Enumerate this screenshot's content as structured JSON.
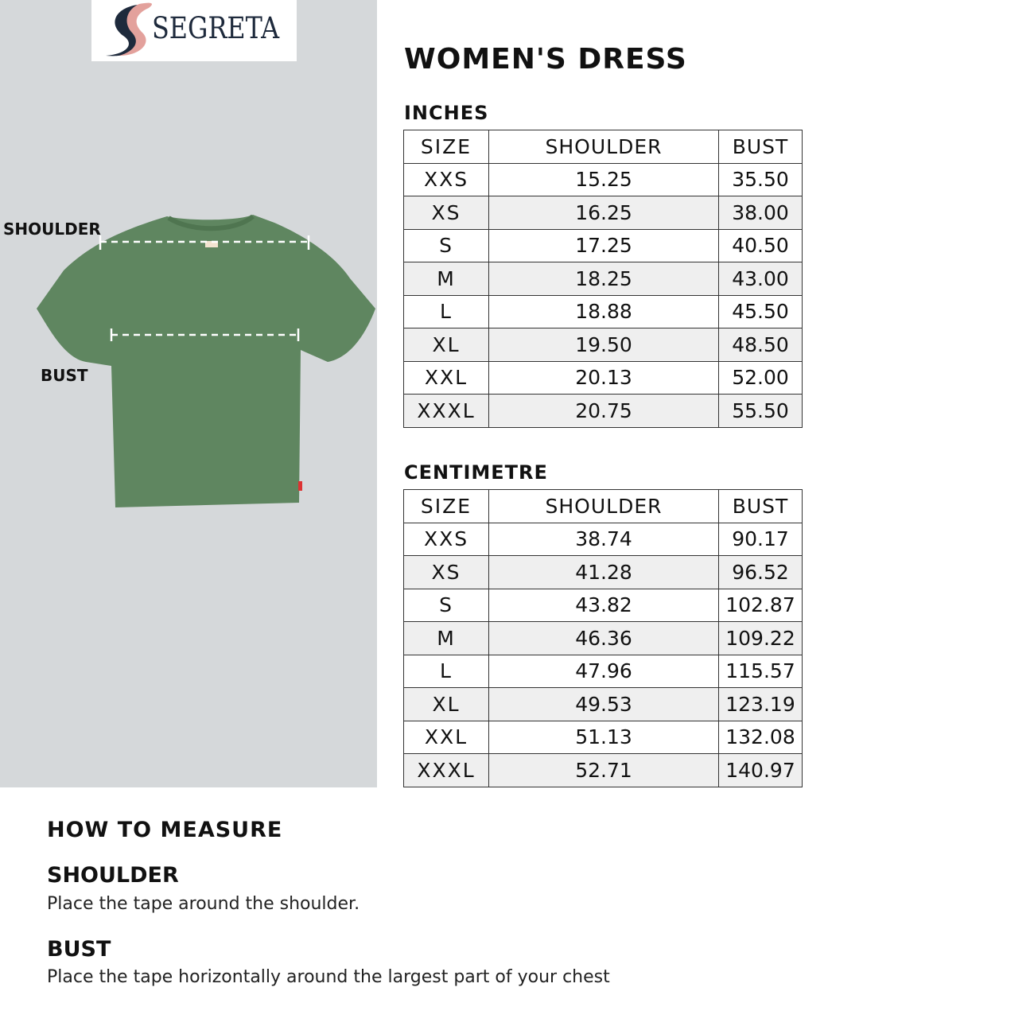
{
  "brand": {
    "name": "SEGRETA",
    "colors": {
      "navy": "#1e2a3c",
      "pink": "#e3a19c"
    }
  },
  "title": "WOMEN'S DRESS",
  "image": {
    "shirt_color": "#5f8660",
    "labels": {
      "shoulder": "SHOULDER",
      "bust": "BUST"
    }
  },
  "inches": {
    "heading": "INCHES",
    "columns": [
      "SIZE",
      "SHOULDER",
      "BUST"
    ],
    "rows": [
      [
        "XXS",
        "15.25",
        "35.50"
      ],
      [
        "XS",
        "16.25",
        "38.00"
      ],
      [
        "S",
        "17.25",
        "40.50"
      ],
      [
        "M",
        "18.25",
        "43.00"
      ],
      [
        "L",
        "18.88",
        "45.50"
      ],
      [
        "XL",
        "19.50",
        "48.50"
      ],
      [
        "XXL",
        "20.13",
        "52.00"
      ],
      [
        "XXXL",
        "20.75",
        "55.50"
      ]
    ]
  },
  "centimetre": {
    "heading": "CENTIMETRE",
    "columns": [
      "SIZE",
      "SHOULDER",
      "BUST"
    ],
    "rows": [
      [
        "XXS",
        "38.74",
        "90.17"
      ],
      [
        "XS",
        "41.28",
        "96.52"
      ],
      [
        "S",
        "43.82",
        "102.87"
      ],
      [
        "M",
        "46.36",
        "109.22"
      ],
      [
        "L",
        "47.96",
        "115.57"
      ],
      [
        "XL",
        "49.53",
        "123.19"
      ],
      [
        "XXL",
        "51.13",
        "132.08"
      ],
      [
        "XXXL",
        "52.71",
        "140.97"
      ]
    ]
  },
  "how_to_measure": {
    "heading": "HOW TO MEASURE",
    "items": [
      {
        "title": "SHOULDER",
        "text": "Place the tape around the shoulder."
      },
      {
        "title": "BUST",
        "text": "Place the tape horizontally around the largest part of your chest"
      }
    ]
  }
}
